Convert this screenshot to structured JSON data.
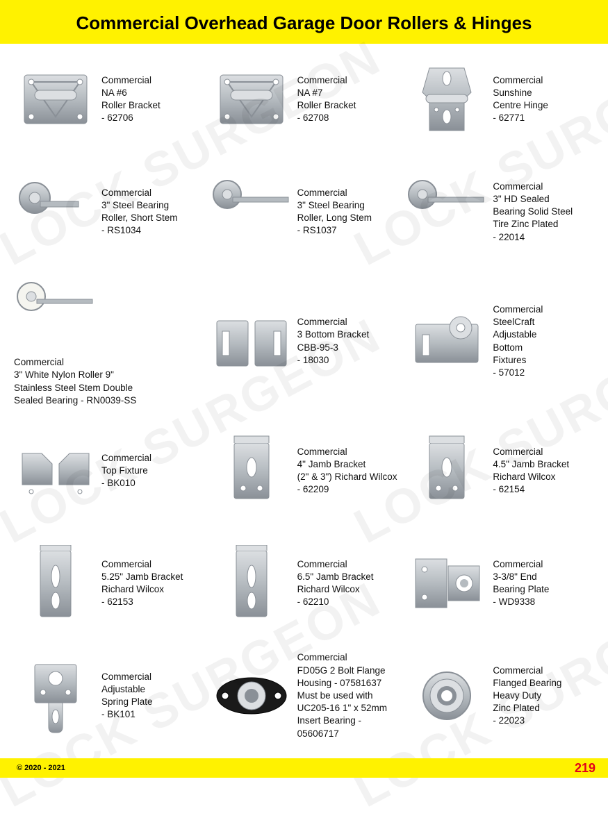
{
  "colors": {
    "header_bg": "#fff200",
    "footer_bg": "#fff200",
    "title_color": "#000000",
    "text_color": "#111111",
    "page_num_color": "#e2001a",
    "metal_light": "#dcdfe2",
    "metal_mid": "#b5bbc0",
    "metal_dark": "#8a9097",
    "black_part": "#1a1a1a",
    "nylon": "#f5f5f0",
    "watermark": "rgba(0,0,0,0.05)"
  },
  "page": {
    "title": "Commercial Overhead Garage Door Rollers & Hinges",
    "copyright": "© 2020 - 2021",
    "page_number": "219",
    "watermark_text": "LOCK SURGEON"
  },
  "products": [
    {
      "name": "Commercial\nNA #6\nRoller Bracket\n- 62706",
      "icon": "bracket-plate"
    },
    {
      "name": "Commercial\nNA #7\nRoller Bracket\n- 62708",
      "icon": "bracket-plate"
    },
    {
      "name": "Commercial\nSunshine\nCentre Hinge\n- 62771",
      "icon": "centre-hinge"
    },
    {
      "name": "Commercial\n3\" Steel Bearing\nRoller, Short Stem\n- RS1034",
      "icon": "roller-short"
    },
    {
      "name": "Commercial\n3\" Steel Bearing\nRoller, Long Stem\n- RS1037",
      "icon": "roller-long"
    },
    {
      "name": "Commercial\n3\" HD Sealed\nBearing Solid Steel\nTire Zinc Plated\n- 22014",
      "icon": "roller-long"
    },
    {
      "name": "Commercial\n3\" White Nylon Roller 9\"\nStainless Steel Stem Double\nSealed Bearing - RN0039-SS",
      "icon": "roller-nylon",
      "stacked": true
    },
    {
      "name": "Commercial\n3 Bottom Bracket\nCBB-95-3\n- 18030",
      "icon": "bottom-bracket-pair"
    },
    {
      "name": "Commercial\nSteelCraft\nAdjustable\nBottom\nFixtures\n- 57012",
      "icon": "adjustable-bottom"
    },
    {
      "name": "Commercial\nTop Fixture\n- BK010",
      "icon": "top-fixture-pair"
    },
    {
      "name": "Commercial\n4\" Jamb Bracket\n(2\" & 3\") Richard Wilcox\n- 62209",
      "icon": "jamb-bracket"
    },
    {
      "name": "Commercial\n4.5\" Jamb Bracket\nRichard Wilcox\n- 62154",
      "icon": "jamb-bracket"
    },
    {
      "name": "Commercial\n5.25\" Jamb Bracket\nRichard Wilcox\n- 62153",
      "icon": "jamb-bracket-tall"
    },
    {
      "name": "Commercial\n6.5\" Jamb Bracket\nRichard Wilcox\n- 62210",
      "icon": "jamb-bracket-tall"
    },
    {
      "name": "Commercial\n3-3/8\" End\nBearing Plate\n- WD9338",
      "icon": "end-bearing-plate"
    },
    {
      "name": "Commercial\nAdjustable\nSpring Plate\n- BK101",
      "icon": "spring-plate"
    },
    {
      "name": "Commercial\nFD05G 2 Bolt Flange\nHousing - 07581637\nMust be used with\nUC205-16 1\" x 52mm\nInsert Bearing - 05606717",
      "icon": "flange-housing"
    },
    {
      "name": "Commercial\nFlanged Bearing\nHeavy Duty\nZinc Plated\n- 22023",
      "icon": "flanged-bearing"
    }
  ]
}
